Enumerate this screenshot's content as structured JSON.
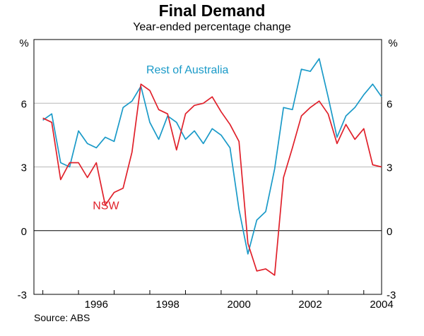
{
  "chart_data": {
    "type": "line",
    "title": "Final Demand",
    "subtitle": "Year-ended percentage change",
    "ylabel_left": "%",
    "ylabel_right": "%",
    "ylim": [
      -3,
      9
    ],
    "yticks": [
      -3,
      0,
      3,
      6
    ],
    "xlim": [
      1994.75,
      2004.5
    ],
    "xticks": [
      1996,
      1998,
      2000,
      2002,
      2004
    ],
    "source": "Source: ABS",
    "series": [
      {
        "name": "Rest of Australia",
        "color": "#1a9ac8",
        "x": [
          1995.0,
          1995.25,
          1995.5,
          1995.75,
          1996.0,
          1996.25,
          1996.5,
          1996.75,
          1997.0,
          1997.25,
          1997.5,
          1997.75,
          1998.0,
          1998.25,
          1998.5,
          1998.75,
          1999.0,
          1999.25,
          1999.5,
          1999.75,
          2000.0,
          2000.25,
          2000.5,
          2000.75,
          2001.0,
          2001.25,
          2001.5,
          2001.75,
          2002.0,
          2002.25,
          2002.5,
          2002.75,
          2003.0,
          2003.25,
          2003.5,
          2003.75,
          2004.0,
          2004.25,
          2004.5
        ],
        "values": [
          5.2,
          5.5,
          3.2,
          3.0,
          4.7,
          4.1,
          3.9,
          4.4,
          4.2,
          5.8,
          6.1,
          6.8,
          5.1,
          4.3,
          5.4,
          5.1,
          4.3,
          4.7,
          4.1,
          4.8,
          4.5,
          3.9,
          1.0,
          -1.1,
          0.5,
          0.9,
          2.9,
          5.8,
          5.7,
          7.6,
          7.5,
          8.1,
          6.3,
          4.4,
          5.4,
          5.8,
          6.4,
          6.9,
          6.3
        ]
      },
      {
        "name": "NSW",
        "color": "#e0202a",
        "x": [
          1995.0,
          1995.25,
          1995.5,
          1995.75,
          1996.0,
          1996.25,
          1996.5,
          1996.75,
          1997.0,
          1997.25,
          1997.5,
          1997.75,
          1998.0,
          1998.25,
          1998.5,
          1998.75,
          1999.0,
          1999.25,
          1999.5,
          1999.75,
          2000.0,
          2000.25,
          2000.5,
          2000.75,
          2001.0,
          2001.25,
          2001.5,
          2001.75,
          2002.0,
          2002.25,
          2002.5,
          2002.75,
          2003.0,
          2003.25,
          2003.5,
          2003.75,
          2004.0,
          2004.25,
          2004.5
        ],
        "values": [
          5.3,
          5.1,
          2.4,
          3.2,
          3.2,
          2.5,
          3.2,
          1.2,
          1.8,
          2.0,
          3.7,
          6.9,
          6.6,
          5.7,
          5.5,
          3.8,
          5.5,
          5.9,
          6.0,
          6.3,
          5.6,
          5.0,
          4.2,
          -0.6,
          -1.9,
          -1.8,
          -2.1,
          2.5,
          3.9,
          5.4,
          5.8,
          6.1,
          5.5,
          4.1,
          5.0,
          4.3,
          4.8,
          3.1,
          3.0
        ]
      }
    ],
    "labels": [
      {
        "text": "Rest of Australia",
        "series": "Rest of Australia",
        "x": 1997.9,
        "y": 7.6
      },
      {
        "text": "NSW",
        "series": "NSW",
        "x": 1996.4,
        "y": 1.2
      }
    ]
  }
}
